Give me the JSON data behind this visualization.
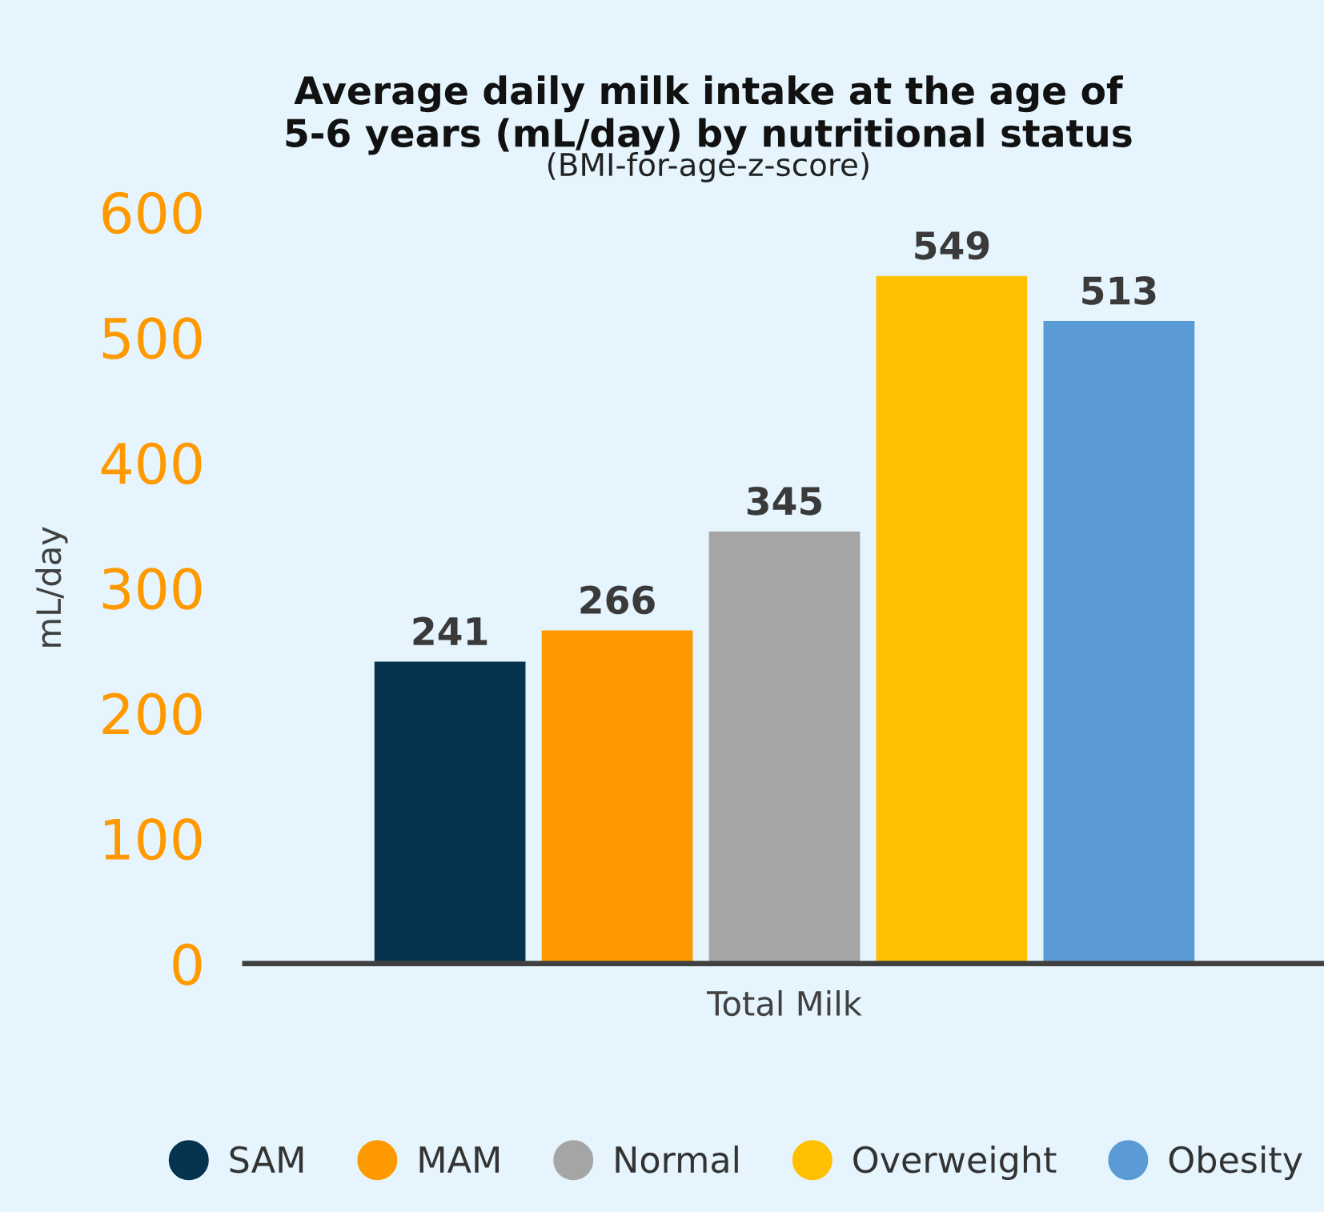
{
  "chart_data": {
    "type": "bar",
    "title": "Average daily milk intake at the age of\n5-6 years (mL/day) by nutritional status",
    "subtitle": "(BMI-for-age-z-score)",
    "ylabel": "mL/day",
    "categories": [
      "Total Milk"
    ],
    "series": [
      {
        "name": "SAM",
        "color": "#06344f",
        "values": [
          241
        ]
      },
      {
        "name": "MAM",
        "color": "#ff9900",
        "values": [
          266
        ]
      },
      {
        "name": "Normal",
        "color": "#a5a5a5",
        "values": [
          345
        ]
      },
      {
        "name": "Overweight",
        "color": "#ffc000",
        "values": [
          549
        ]
      },
      {
        "name": "Obesity",
        "color": "#5b9bd5",
        "values": [
          513
        ]
      }
    ],
    "ylim": [
      0,
      600
    ],
    "yticks": [
      0,
      100,
      200,
      300,
      400,
      500,
      600
    ],
    "grid": false,
    "legend": "bottom",
    "data_labels": true
  }
}
